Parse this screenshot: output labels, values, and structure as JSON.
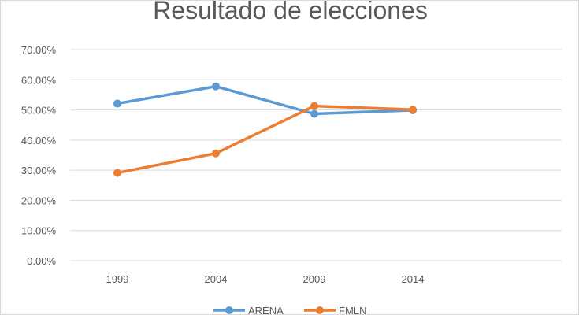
{
  "chart_data": {
    "type": "line",
    "title": "Resultado de elecciones",
    "categories": [
      "1999",
      "2004",
      "2009",
      "2014"
    ],
    "yticks": [
      "0.00%",
      "10.00%",
      "20.00%",
      "30.00%",
      "40.00%",
      "50.00%",
      "60.00%",
      "70.00%"
    ],
    "ylim": [
      0,
      70
    ],
    "grid": true,
    "legend_position": "bottom",
    "series": [
      {
        "name": "ARENA",
        "color": "#5b9bd5",
        "values": [
          52.1,
          57.8,
          48.7,
          49.9
        ]
      },
      {
        "name": "FMLN",
        "color": "#ed7d31",
        "values": [
          29.1,
          35.6,
          51.3,
          50.1
        ]
      }
    ]
  }
}
